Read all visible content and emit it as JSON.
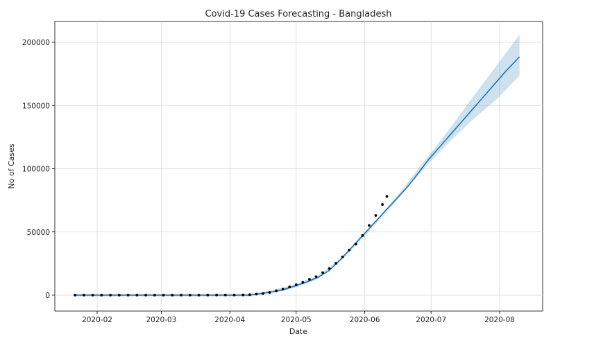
{
  "chart_data": {
    "type": "line",
    "title": "Covid-19 Cases Forecasting - Bangladesh",
    "xlabel": "Date",
    "ylabel": "No of Cases",
    "x_domain": [
      "2020-01-22",
      "2020-08-10"
    ],
    "ylim": [
      -12000,
      217000
    ],
    "grid": true,
    "x_ticks": [
      {
        "date": "2020-02-01",
        "label": "2020-02"
      },
      {
        "date": "2020-03-01",
        "label": "2020-03"
      },
      {
        "date": "2020-04-01",
        "label": "2020-04"
      },
      {
        "date": "2020-05-01",
        "label": "2020-05"
      },
      {
        "date": "2020-06-01",
        "label": "2020-06"
      },
      {
        "date": "2020-07-01",
        "label": "2020-07"
      },
      {
        "date": "2020-08-01",
        "label": "2020-08"
      }
    ],
    "y_ticks": [
      {
        "value": 0,
        "label": "0"
      },
      {
        "value": 50000,
        "label": "50000"
      },
      {
        "value": 100000,
        "label": "100000"
      },
      {
        "value": 150000,
        "label": "150000"
      },
      {
        "value": 200000,
        "label": "200000"
      }
    ],
    "series": [
      {
        "kind": "forecast-line",
        "color": "#1f77b4",
        "points": [
          [
            "2020-01-22",
            0
          ],
          [
            "2020-04-10",
            0
          ],
          [
            "2020-04-15",
            1200
          ],
          [
            "2020-04-20",
            2600
          ],
          [
            "2020-04-25",
            4200
          ],
          [
            "2020-05-01",
            7500
          ],
          [
            "2020-05-06",
            10500
          ],
          [
            "2020-05-11",
            14200
          ],
          [
            "2020-05-16",
            19500
          ],
          [
            "2020-05-21",
            28000
          ],
          [
            "2020-05-26",
            37500
          ],
          [
            "2020-05-31",
            47000
          ],
          [
            "2020-06-05",
            56500
          ],
          [
            "2020-06-10",
            66000
          ],
          [
            "2020-06-15",
            75500
          ],
          [
            "2020-06-20",
            85000
          ],
          [
            "2020-06-25",
            96000
          ],
          [
            "2020-06-30",
            107500
          ],
          [
            "2020-07-05",
            117500
          ],
          [
            "2020-07-10",
            127500
          ],
          [
            "2020-07-15",
            137500
          ],
          [
            "2020-07-20",
            147500
          ],
          [
            "2020-07-25",
            157500
          ],
          [
            "2020-07-30",
            167500
          ],
          [
            "2020-08-04",
            177500
          ],
          [
            "2020-08-10",
            188500
          ]
        ]
      },
      {
        "kind": "uncertainty-band",
        "color": "#1f77b4",
        "opacity": 0.22,
        "upper": [
          [
            "2020-01-22",
            1000
          ],
          [
            "2020-04-10",
            1000
          ],
          [
            "2020-04-20",
            3800
          ],
          [
            "2020-05-01",
            9000
          ],
          [
            "2020-05-11",
            15500
          ],
          [
            "2020-05-21",
            29200
          ],
          [
            "2020-06-01",
            49500
          ],
          [
            "2020-06-15",
            77000
          ],
          [
            "2020-06-30",
            110500
          ],
          [
            "2020-07-10",
            133000
          ],
          [
            "2020-07-20",
            157000
          ],
          [
            "2020-07-31",
            182500
          ],
          [
            "2020-08-10",
            206000
          ]
        ],
        "lower": [
          [
            "2020-01-22",
            -1000
          ],
          [
            "2020-04-10",
            -1000
          ],
          [
            "2020-04-20",
            1400
          ],
          [
            "2020-05-01",
            6000
          ],
          [
            "2020-05-11",
            12800
          ],
          [
            "2020-05-21",
            26800
          ],
          [
            "2020-06-01",
            46500
          ],
          [
            "2020-06-15",
            74000
          ],
          [
            "2020-06-30",
            104500
          ],
          [
            "2020-07-10",
            122500
          ],
          [
            "2020-07-20",
            139000
          ],
          [
            "2020-07-31",
            155500
          ],
          [
            "2020-08-10",
            173500
          ]
        ]
      },
      {
        "kind": "observed-points",
        "color": "#000000",
        "points": [
          [
            "2020-01-22",
            0
          ],
          [
            "2020-01-26",
            0
          ],
          [
            "2020-01-30",
            0
          ],
          [
            "2020-02-03",
            0
          ],
          [
            "2020-02-07",
            0
          ],
          [
            "2020-02-11",
            0
          ],
          [
            "2020-02-15",
            0
          ],
          [
            "2020-02-19",
            0
          ],
          [
            "2020-02-23",
            0
          ],
          [
            "2020-02-27",
            0
          ],
          [
            "2020-03-02",
            0
          ],
          [
            "2020-03-06",
            0
          ],
          [
            "2020-03-10",
            3
          ],
          [
            "2020-03-14",
            3
          ],
          [
            "2020-03-18",
            14
          ],
          [
            "2020-03-22",
            27
          ],
          [
            "2020-03-26",
            44
          ],
          [
            "2020-03-30",
            49
          ],
          [
            "2020-04-03",
            61
          ],
          [
            "2020-04-07",
            164
          ],
          [
            "2020-04-10",
            424
          ],
          [
            "2020-04-13",
            803
          ],
          [
            "2020-04-16",
            1231
          ],
          [
            "2020-04-19",
            2144
          ],
          [
            "2020-04-22",
            3382
          ],
          [
            "2020-04-25",
            4689
          ],
          [
            "2020-04-28",
            6462
          ],
          [
            "2020-05-01",
            8238
          ],
          [
            "2020-05-04",
            10143
          ],
          [
            "2020-05-07",
            12425
          ],
          [
            "2020-05-10",
            14657
          ],
          [
            "2020-05-13",
            17822
          ],
          [
            "2020-05-16",
            20995
          ],
          [
            "2020-05-19",
            25121
          ],
          [
            "2020-05-22",
            30205
          ],
          [
            "2020-05-25",
            35585
          ],
          [
            "2020-05-28",
            40321
          ],
          [
            "2020-05-31",
            47153
          ],
          [
            "2020-06-03",
            55140
          ],
          [
            "2020-06-06",
            63026
          ],
          [
            "2020-06-09",
            71675
          ],
          [
            "2020-06-11",
            78052
          ]
        ]
      }
    ]
  }
}
